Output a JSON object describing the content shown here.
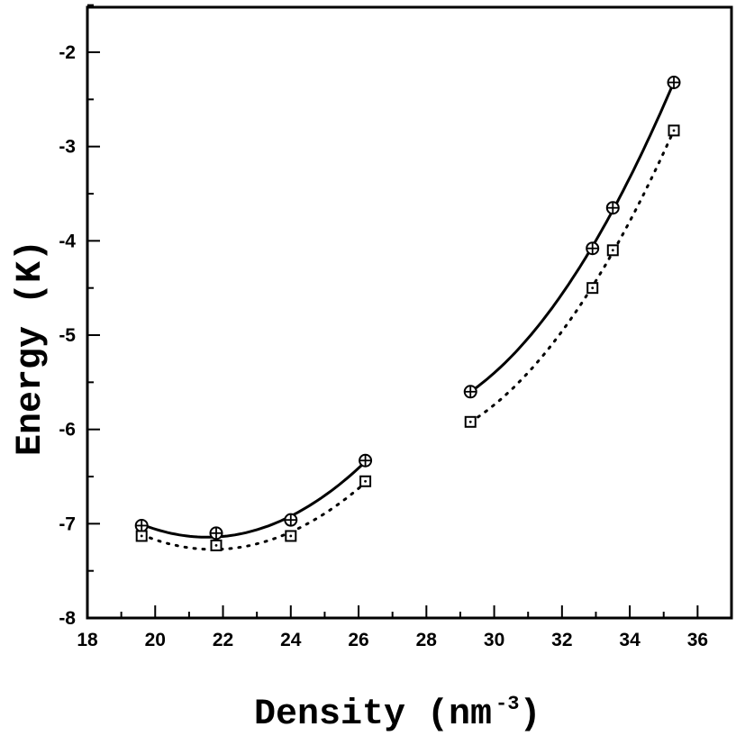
{
  "chart_data": {
    "type": "scatter",
    "title": "",
    "xlabel": "Density (nm",
    "xlabel_superscript": "-3",
    "xlabel_close": ")",
    "ylabel": "Energy (K)",
    "xlim": [
      18,
      37
    ],
    "ylim": [
      -8,
      -1.5
    ],
    "xticks": [
      18,
      20,
      22,
      24,
      26,
      28,
      30,
      32,
      34,
      36
    ],
    "yticks": [
      -8,
      -7,
      -6,
      -5,
      -4,
      -3,
      -2
    ],
    "grid": false,
    "series": [
      {
        "marker": "circle-plus",
        "line": "solid",
        "color": "#000000",
        "segments": [
          {
            "x": [
              19.6,
              21.8,
              24.0,
              26.2
            ],
            "y": [
              -7.02,
              -7.1,
              -6.96,
              -6.33
            ]
          },
          {
            "x": [
              29.3,
              32.9,
              33.5,
              35.3
            ],
            "y": [
              -5.6,
              -4.08,
              -3.65,
              -2.32
            ]
          }
        ]
      },
      {
        "marker": "square-dot",
        "line": "dotted",
        "color": "#000000",
        "segments": [
          {
            "x": [
              19.6,
              21.8,
              24.0,
              26.2
            ],
            "y": [
              -7.13,
              -7.23,
              -7.13,
              -6.55
            ]
          },
          {
            "x": [
              29.3,
              32.9,
              33.5,
              35.3
            ],
            "y": [
              -5.92,
              -4.5,
              -4.1,
              -2.83
            ]
          }
        ]
      }
    ]
  }
}
